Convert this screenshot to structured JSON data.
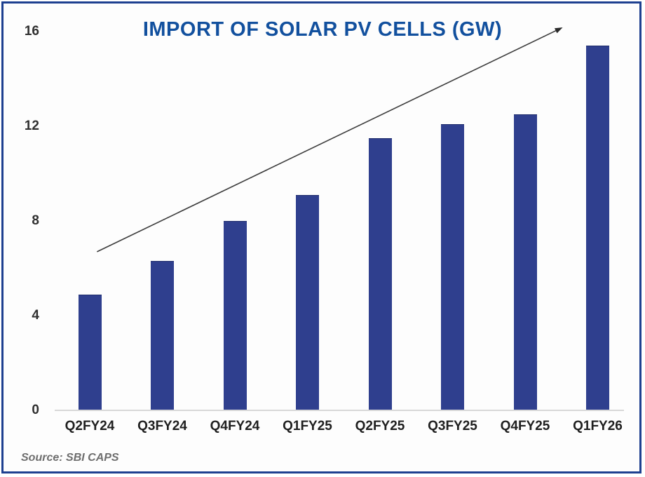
{
  "chart_data": {
    "type": "bar",
    "title": "IMPORT OF SOLAR PV CELLS (GW)",
    "categories": [
      "Q2FY24",
      "Q3FY24",
      "Q4FY24",
      "Q1FY25",
      "Q2FY25",
      "Q3FY25",
      "Q4FY25",
      "Q1FY26"
    ],
    "values": [
      4.9,
      6.3,
      8.0,
      9.1,
      11.5,
      12.1,
      12.5,
      15.4
    ],
    "ylim": [
      0,
      16
    ],
    "yticks": [
      0,
      4,
      8,
      12,
      16
    ],
    "xlabel": "",
    "ylabel": "",
    "grid": false,
    "legend": "none",
    "bar_color": "#2f3f8e",
    "title_color": "#12509e",
    "axis_line_color": "#d8d8d8",
    "arrow_color": "#3c3c3c",
    "frame_border_color": "#1e4090",
    "annotations": [
      {
        "type": "arrow",
        "description": "upward trend arrow across bars",
        "from": {
          "slot": 0.1,
          "value": 6.7
        },
        "to": {
          "slot": 6.5,
          "value": 16.15
        }
      }
    ]
  },
  "source": {
    "label": "Source: SBI CAPS"
  }
}
